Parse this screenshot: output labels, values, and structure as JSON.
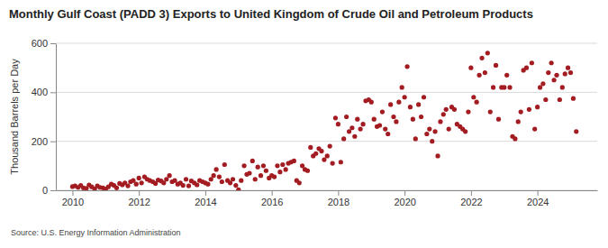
{
  "chart_data": {
    "type": "scatter",
    "title": "Monthly Gulf Coast (PADD 3) Exports to United Kingdom of Crude Oil and Petroleum Products",
    "y_label": "Thousand Barrels per Day",
    "annotations": [
      "Source: U.S. Energy Information Administration"
    ],
    "xlim": [
      2009.5,
      2025.8
    ],
    "xticks": [
      2010,
      2012,
      2014,
      2016,
      2018,
      2020,
      2022,
      2024
    ],
    "ylim": [
      0,
      600
    ],
    "yticks": [
      0,
      200,
      400,
      600
    ],
    "grid": true,
    "marker": "circle",
    "color": "#a31c21",
    "x": [
      2010.0,
      2010.08,
      2010.17,
      2010.25,
      2010.33,
      2010.42,
      2010.5,
      2010.58,
      2010.67,
      2010.75,
      2010.83,
      2010.92,
      2011.0,
      2011.08,
      2011.17,
      2011.25,
      2011.33,
      2011.42,
      2011.5,
      2011.58,
      2011.67,
      2011.75,
      2011.83,
      2011.92,
      2012.0,
      2012.08,
      2012.17,
      2012.25,
      2012.33,
      2012.42,
      2012.5,
      2012.58,
      2012.67,
      2012.75,
      2012.83,
      2012.92,
      2013.0,
      2013.08,
      2013.17,
      2013.25,
      2013.33,
      2013.42,
      2013.5,
      2013.58,
      2013.67,
      2013.75,
      2013.83,
      2013.92,
      2014.0,
      2014.08,
      2014.17,
      2014.25,
      2014.33,
      2014.42,
      2014.5,
      2014.58,
      2014.67,
      2014.75,
      2014.83,
      2014.92,
      2015.0,
      2015.08,
      2015.17,
      2015.25,
      2015.33,
      2015.42,
      2015.5,
      2015.58,
      2015.67,
      2015.75,
      2015.83,
      2015.92,
      2016.0,
      2016.08,
      2016.17,
      2016.25,
      2016.33,
      2016.42,
      2016.5,
      2016.58,
      2016.67,
      2016.75,
      2016.83,
      2016.92,
      2017.0,
      2017.08,
      2017.17,
      2017.25,
      2017.33,
      2017.42,
      2017.5,
      2017.58,
      2017.67,
      2017.75,
      2017.83,
      2017.92,
      2018.0,
      2018.08,
      2018.17,
      2018.25,
      2018.33,
      2018.42,
      2018.5,
      2018.58,
      2018.67,
      2018.75,
      2018.83,
      2018.92,
      2019.0,
      2019.08,
      2019.17,
      2019.25,
      2019.33,
      2019.42,
      2019.5,
      2019.58,
      2019.67,
      2019.75,
      2019.83,
      2019.92,
      2020.0,
      2020.08,
      2020.17,
      2020.25,
      2020.33,
      2020.42,
      2020.5,
      2020.58,
      2020.67,
      2020.75,
      2020.83,
      2020.92,
      2021.0,
      2021.08,
      2021.17,
      2021.25,
      2021.33,
      2021.42,
      2021.5,
      2021.58,
      2021.67,
      2021.75,
      2021.83,
      2021.92,
      2022.0,
      2022.08,
      2022.17,
      2022.25,
      2022.33,
      2022.42,
      2022.5,
      2022.58,
      2022.67,
      2022.75,
      2022.83,
      2022.92,
      2023.0,
      2023.08,
      2023.17,
      2023.25,
      2023.33,
      2023.42,
      2023.5,
      2023.58,
      2023.67,
      2023.75,
      2023.83,
      2023.92,
      2024.0,
      2024.08,
      2024.17,
      2024.25,
      2024.33,
      2024.42,
      2024.5,
      2024.58,
      2024.67,
      2024.75,
      2024.83,
      2024.92,
      2025.0,
      2025.08,
      2025.17
    ],
    "values": [
      15,
      18,
      12,
      20,
      10,
      8,
      22,
      14,
      6,
      18,
      12,
      10,
      5,
      14,
      25,
      20,
      10,
      28,
      22,
      30,
      18,
      35,
      40,
      25,
      50,
      30,
      55,
      45,
      40,
      35,
      28,
      42,
      38,
      30,
      45,
      60,
      35,
      40,
      25,
      30,
      20,
      45,
      18,
      38,
      30,
      22,
      40,
      35,
      30,
      25,
      45,
      60,
      85,
      55,
      35,
      105,
      40,
      30,
      45,
      20,
      2,
      40,
      100,
      65,
      70,
      120,
      45,
      95,
      60,
      100,
      80,
      50,
      60,
      55,
      100,
      75,
      105,
      85,
      110,
      115,
      120,
      40,
      30,
      100,
      85,
      80,
      175,
      140,
      150,
      170,
      160,
      125,
      140,
      180,
      110,
      295,
      270,
      115,
      210,
      300,
      240,
      255,
      220,
      290,
      250,
      270,
      365,
      370,
      360,
      290,
      260,
      265,
      320,
      250,
      230,
      350,
      300,
      280,
      360,
      420,
      380,
      505,
      340,
      290,
      210,
      350,
      300,
      380,
      230,
      250,
      200,
      240,
      140,
      280,
      310,
      330,
      250,
      340,
      330,
      270,
      260,
      250,
      240,
      320,
      500,
      380,
      360,
      470,
      540,
      480,
      560,
      320,
      420,
      510,
      290,
      420,
      420,
      470,
      420,
      220,
      210,
      280,
      320,
      490,
      500,
      330,
      520,
      250,
      340,
      420,
      435,
      370,
      480,
      520,
      450,
      470,
      370,
      420,
      475,
      500,
      480,
      375,
      240
    ]
  }
}
